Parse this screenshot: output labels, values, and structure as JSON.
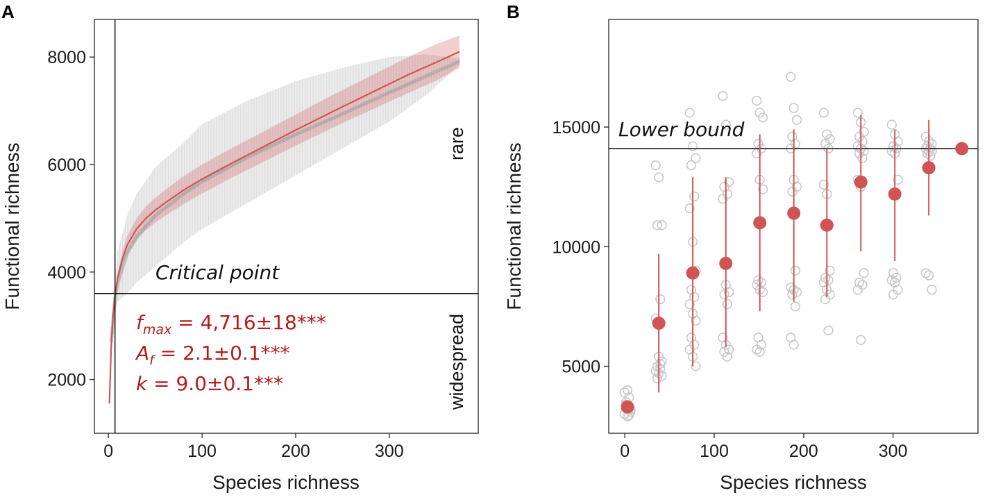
{
  "colors": {
    "accent": "#d05454",
    "stat_text": "#b31b1b",
    "grey_band": "#bdbdbd",
    "grey_point": "#c8c8c8",
    "axis": "#333333"
  },
  "chart_data": [
    {
      "panel": "A",
      "type": "line",
      "xlabel": "Species richness",
      "ylabel": "Functional richness",
      "xlim": [
        -15,
        395
      ],
      "ylim": [
        1000,
        8700
      ],
      "x_ticks": [
        0,
        100,
        200,
        300
      ],
      "y_ticks": [
        2000,
        4000,
        6000,
        8000
      ],
      "grid": false,
      "vline_x": 7,
      "hline_y": 3600,
      "hline_label": "Critical point",
      "label_above": "rare",
      "label_below": "widespread",
      "fit": {
        "name": "fitted curve",
        "x": [
          1,
          3,
          5,
          7,
          10,
          15,
          20,
          30,
          40,
          50,
          60,
          80,
          100,
          130,
          160,
          200,
          240,
          280,
          320,
          350,
          375
        ],
        "y": [
          1550,
          2650,
          3200,
          3550,
          3900,
          4250,
          4500,
          4800,
          5000,
          5150,
          5280,
          5520,
          5730,
          6010,
          6280,
          6640,
          6990,
          7330,
          7670,
          7900,
          8100
        ],
        "ci_lower": [
          1500,
          2580,
          3120,
          3470,
          3800,
          4120,
          4330,
          4600,
          4780,
          4920,
          5040,
          5260,
          5460,
          5740,
          6000,
          6350,
          6690,
          7010,
          7330,
          7560,
          7800
        ],
        "ci_upper": [
          1600,
          2720,
          3280,
          3630,
          4000,
          4380,
          4670,
          5000,
          5220,
          5380,
          5520,
          5780,
          6000,
          6290,
          6560,
          6930,
          7300,
          7650,
          8000,
          8240,
          8400
        ]
      },
      "observed_band": {
        "name": "observed rarefaction range",
        "x": [
          3,
          7,
          10,
          20,
          30,
          50,
          80,
          100,
          150,
          200,
          250,
          300,
          340,
          375
        ],
        "mean": [
          2700,
          3500,
          3800,
          4350,
          4650,
          5050,
          5450,
          5680,
          6150,
          6560,
          6940,
          7340,
          7650,
          7920
        ],
        "lower": [
          2400,
          3300,
          3450,
          3600,
          3800,
          4100,
          4550,
          4800,
          5300,
          5800,
          6300,
          6800,
          7300,
          7850
        ],
        "upper": [
          3000,
          3900,
          4400,
          5050,
          5450,
          5950,
          6400,
          6750,
          7200,
          7550,
          7800,
          8000,
          8050,
          7980
        ]
      },
      "fit_stats": {
        "fmax_symbol": "f",
        "fmax_sub": "max",
        "fmax_value": " = 4,716±18***",
        "af_symbol": "A",
        "af_sub": "f",
        "af_value": " = 2.1±0.1***",
        "k_symbol": "k",
        "k_value": " = 9.0±0.1***"
      }
    },
    {
      "panel": "B",
      "type": "scatter",
      "xlabel": "Species richness",
      "ylabel": "Functional richness",
      "xlim": [
        -18,
        395
      ],
      "ylim": [
        2200,
        19500
      ],
      "x_ticks": [
        0,
        100,
        200,
        300
      ],
      "y_ticks": [
        5000,
        10000,
        15000
      ],
      "grid": false,
      "hline_y": 14100,
      "hline_label": "Lower bound",
      "groups": [
        {
          "x": 3,
          "mean": 3300,
          "lower": null,
          "upper": null,
          "points": [
            3000,
            2900,
            3200,
            3500,
            3700,
            3900,
            4000,
            3100,
            3400,
            2950
          ]
        },
        {
          "x": 38,
          "mean": 6800,
          "lower": 3900,
          "upper": 9700,
          "points": [
            13400,
            12900,
            10900,
            10900,
            7800,
            7000,
            5400,
            5200,
            5000,
            4900,
            4800,
            4700,
            4600,
            4500,
            5100
          ]
        },
        {
          "x": 76,
          "mean": 8900,
          "lower": 5000,
          "upper": 12900,
          "points": [
            15600,
            14200,
            13700,
            13400,
            12100,
            11600,
            10200,
            9000,
            8200,
            7900,
            7600,
            7200,
            6900,
            6200,
            5900,
            5700,
            5400,
            5000
          ]
        },
        {
          "x": 113,
          "mean": 9300,
          "lower": 5800,
          "upper": 12900,
          "points": [
            16300,
            15100,
            12700,
            12500,
            12200,
            12000,
            8400,
            8100,
            8000,
            7600,
            6200,
            5900,
            5700,
            5600,
            5400
          ]
        },
        {
          "x": 151,
          "mean": 11000,
          "lower": 7300,
          "upper": 14700,
          "points": [
            16100,
            15600,
            15400,
            14300,
            14100,
            13900,
            12800,
            12400,
            8600,
            8500,
            8400,
            8200,
            8100,
            6200,
            5900,
            5700,
            5600
          ]
        },
        {
          "x": 189,
          "mean": 11400,
          "lower": 7700,
          "upper": 14900,
          "points": [
            17100,
            15800,
            15300,
            14600,
            14300,
            14100,
            12800,
            12500,
            12300,
            9000,
            8300,
            8200,
            8100,
            8000,
            7500,
            6200,
            5900
          ]
        },
        {
          "x": 226,
          "mean": 10900,
          "lower": 7900,
          "upper": 14100,
          "points": [
            15600,
            14700,
            14500,
            14300,
            14100,
            12600,
            12200,
            9000,
            8700,
            8600,
            8500,
            8200,
            8000,
            7800,
            6500
          ]
        },
        {
          "x": 264,
          "mean": 12700,
          "lower": 9800,
          "upper": 15500,
          "points": [
            15600,
            15200,
            14800,
            14600,
            14400,
            14200,
            14100,
            14000,
            13900,
            13700,
            12800,
            12500,
            8900,
            8500,
            8400,
            8200,
            6100
          ]
        },
        {
          "x": 302,
          "mean": 12200,
          "lower": 9400,
          "upper": 14900,
          "points": [
            15100,
            14700,
            14400,
            14200,
            14100,
            14000,
            13900,
            12800,
            8900,
            8700,
            8600,
            8500,
            8200,
            8000
          ]
        },
        {
          "x": 340,
          "mean": 13300,
          "lower": 11300,
          "upper": 15300,
          "points": [
            14600,
            14400,
            14300,
            14200,
            14100,
            14100,
            14000,
            14000,
            13900,
            13800,
            8900,
            8800,
            8200
          ]
        },
        {
          "x": 377,
          "mean": 14100,
          "lower": null,
          "upper": null,
          "points": []
        }
      ]
    }
  ]
}
